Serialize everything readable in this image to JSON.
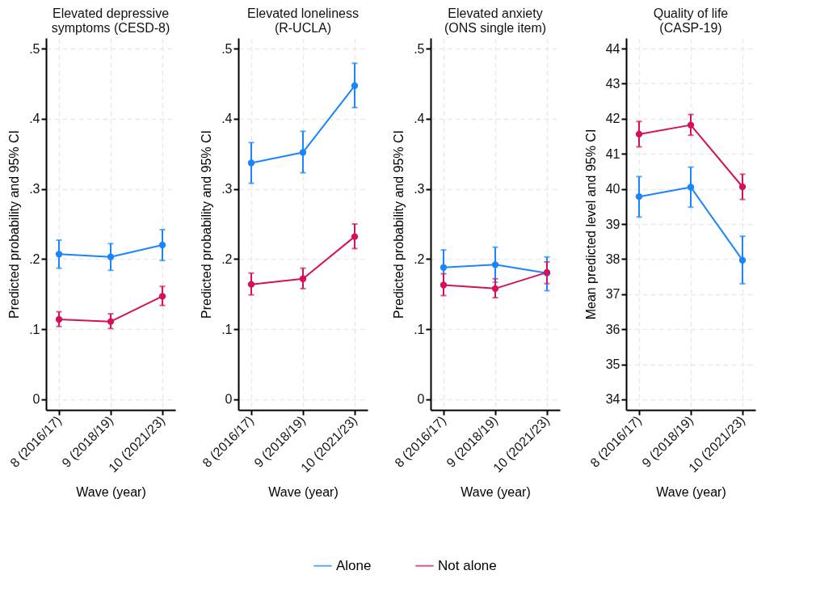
{
  "chart_data": [
    {
      "type": "line",
      "title": "Elevated depressive\nsymptoms (CESD-8)",
      "xlabel": "Wave (year)",
      "ylabel": "Predicted probability and 95% CI",
      "categories": [
        "8 (2016/17)",
        "9 (2018/19)",
        "10 (2021/23)"
      ],
      "ylim": [
        -0.015,
        0.515
      ],
      "yticks": [
        0,
        {
          "value": 0.1,
          "label": ".1"
        },
        {
          "value": 0.2,
          "label": ".2"
        },
        {
          "value": 0.3,
          "label": ".3"
        },
        {
          "value": 0.4,
          "label": ".4"
        },
        {
          "value": 0.5,
          "label": ".5"
        }
      ],
      "grid": true,
      "legend": "bottom",
      "marker": "circle",
      "line_style": "solid",
      "series": [
        {
          "name": "Alone",
          "color": "#1a85ff",
          "values": [
            0.207,
            0.203,
            0.22
          ],
          "errors": [
            [
              0.187,
              0.227
            ],
            [
              0.184,
              0.222
            ],
            [
              0.198,
              0.242
            ]
          ]
        },
        {
          "name": "Not alone",
          "color": "#d41159",
          "values": [
            0.114,
            0.111,
            0.147
          ],
          "errors": [
            [
              0.104,
              0.125
            ],
            [
              0.101,
              0.122
            ],
            [
              0.134,
              0.161
            ]
          ]
        }
      ]
    },
    {
      "type": "line",
      "title": "Elevated loneliness\n(R-UCLA)",
      "xlabel": "Wave (year)",
      "ylabel": "Predicted probability and 95% CI",
      "categories": [
        "8 (2016/17)",
        "9 (2018/19)",
        "10 (2021/23)"
      ],
      "ylim": [
        -0.015,
        0.515
      ],
      "yticks": [
        0,
        {
          "value": 0.1,
          "label": ".1"
        },
        {
          "value": 0.2,
          "label": ".2"
        },
        {
          "value": 0.3,
          "label": ".3"
        },
        {
          "value": 0.4,
          "label": ".4"
        },
        {
          "value": 0.5,
          "label": ".5"
        }
      ],
      "grid": true,
      "legend": "bottom",
      "marker": "circle",
      "line_style": "solid",
      "series": [
        {
          "name": "Alone",
          "color": "#1a85ff",
          "values": [
            0.337,
            0.352,
            0.447
          ],
          "errors": [
            [
              0.308,
              0.366
            ],
            [
              0.323,
              0.382
            ],
            [
              0.416,
              0.479
            ]
          ]
        },
        {
          "name": "Not alone",
          "color": "#d41159",
          "values": [
            0.164,
            0.172,
            0.232
          ],
          "errors": [
            [
              0.149,
              0.18
            ],
            [
              0.158,
              0.187
            ],
            [
              0.215,
              0.25
            ]
          ]
        }
      ]
    },
    {
      "type": "line",
      "title": "Elevated anxiety\n(ONS single item)",
      "xlabel": "Wave (year)",
      "ylabel": "Predicted probability and 95% CI",
      "categories": [
        "8 (2016/17)",
        "9 (2018/19)",
        "10 (2021/23)"
      ],
      "ylim": [
        -0.015,
        0.515
      ],
      "yticks": [
        0,
        {
          "value": 0.1,
          "label": ".1"
        },
        {
          "value": 0.2,
          "label": ".2"
        },
        {
          "value": 0.3,
          "label": ".3"
        },
        {
          "value": 0.4,
          "label": ".4"
        },
        {
          "value": 0.5,
          "label": ".5"
        }
      ],
      "grid": true,
      "legend": "bottom",
      "marker": "circle",
      "line_style": "solid",
      "series": [
        {
          "name": "Alone",
          "color": "#1a85ff",
          "values": [
            0.188,
            0.192,
            0.18
          ],
          "errors": [
            [
              0.163,
              0.213
            ],
            [
              0.167,
              0.217
            ],
            [
              0.155,
              0.203
            ]
          ]
        },
        {
          "name": "Not alone",
          "color": "#d41159",
          "values": [
            0.163,
            0.158,
            0.181
          ],
          "errors": [
            [
              0.148,
              0.179
            ],
            [
              0.145,
              0.172
            ],
            [
              0.165,
              0.196
            ]
          ]
        }
      ]
    },
    {
      "type": "line",
      "title": "Quality of life\n(CASP-19)",
      "xlabel": "Wave (year)",
      "ylabel": "Mean predicted level and 95% CI",
      "categories": [
        "8 (2016/17)",
        "9 (2018/19)",
        "10 (2021/23)"
      ],
      "ylim": [
        33.7,
        44.3
      ],
      "yticks": [
        34,
        35,
        36,
        37,
        38,
        39,
        40,
        41,
        42,
        43,
        44
      ],
      "grid": true,
      "legend": "bottom",
      "marker": "circle",
      "line_style": "solid",
      "series": [
        {
          "name": "Alone",
          "color": "#1a85ff",
          "values": [
            39.78,
            40.05,
            37.97
          ],
          "errors": [
            [
              39.2,
              40.35
            ],
            [
              39.48,
              40.62
            ],
            [
              37.3,
              38.65
            ]
          ]
        },
        {
          "name": "Not alone",
          "color": "#d41159",
          "values": [
            41.56,
            41.82,
            40.06
          ],
          "errors": [
            [
              41.2,
              41.92
            ],
            [
              41.53,
              42.12
            ],
            [
              39.7,
              40.42
            ]
          ]
        }
      ]
    }
  ]
}
